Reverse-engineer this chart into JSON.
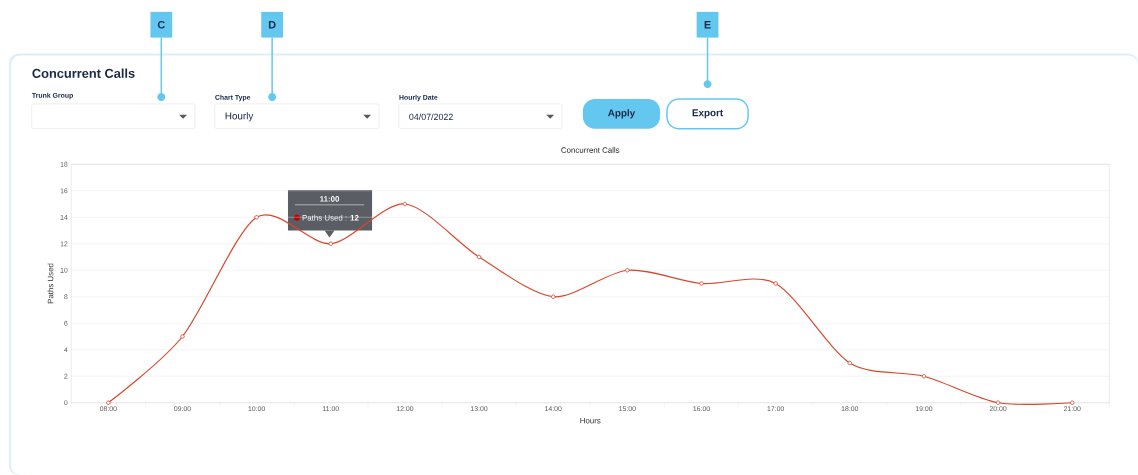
{
  "chart_data": {
    "type": "line",
    "title": "Concurrent Calls",
    "xlabel": "Hours",
    "ylabel": "Paths Used",
    "categories": [
      "08:00",
      "09:00",
      "10:00",
      "11:00",
      "12:00",
      "13:00",
      "14:00",
      "15:00",
      "16:00",
      "17:00",
      "18:00",
      "19:00",
      "20:00",
      "21:00"
    ],
    "series": [
      {
        "color": "#d9472b",
        "values": [
          0,
          5,
          14,
          12,
          15,
          11,
          8,
          10,
          9,
          9,
          3,
          2,
          0,
          0
        ]
      }
    ],
    "ylim": [
      0,
      18
    ],
    "yticks": [
      0,
      2,
      4,
      6,
      8,
      10,
      12,
      14,
      16,
      18
    ],
    "grid": "y",
    "marker": "circle",
    "line_style": "solid",
    "annotations": [
      "11:00",
      "Paths Used : **12**",
      "Concurrent Calls",
      "Trunk Group",
      "Chart Type",
      "Hourly",
      "Hourly Date",
      "04/07/2022",
      "Apply",
      "Export",
      "C",
      "D",
      "E"
    ]
  }
}
